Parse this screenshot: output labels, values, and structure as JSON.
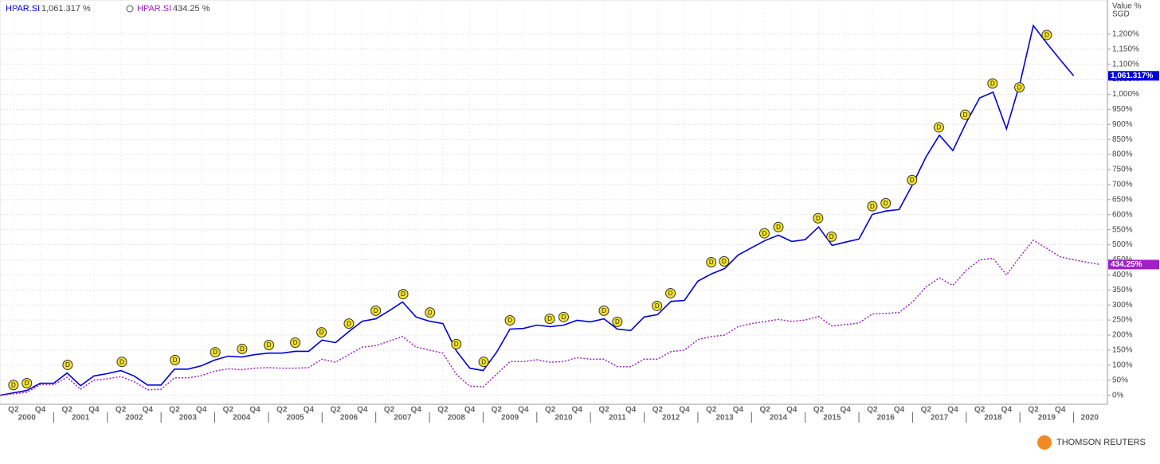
{
  "chart_data": {
    "type": "line",
    "ylabel": "Value %",
    "yunit": "SGD",
    "brand": "THOMSON REUTERS",
    "xlim": [
      2000,
      2020.6
    ],
    "ylim": [
      -30,
      1300
    ],
    "grid": true,
    "x": [
      2000,
      2000.25,
      2000.5,
      2000.75,
      2001,
      2001.25,
      2001.5,
      2001.75,
      2002,
      2002.25,
      2002.5,
      2002.75,
      2003,
      2003.25,
      2003.5,
      2003.75,
      2004,
      2004.25,
      2004.5,
      2004.75,
      2005,
      2005.25,
      2005.5,
      2005.75,
      2006,
      2006.25,
      2006.5,
      2006.75,
      2007,
      2007.25,
      2007.5,
      2007.75,
      2008,
      2008.25,
      2008.5,
      2008.75,
      2009,
      2009.25,
      2009.5,
      2009.75,
      2010,
      2010.25,
      2010.5,
      2010.75,
      2011,
      2011.25,
      2011.5,
      2011.75,
      2012,
      2012.25,
      2012.5,
      2012.75,
      2013,
      2013.25,
      2013.5,
      2013.75,
      2014,
      2014.25,
      2014.5,
      2014.75,
      2015,
      2015.25,
      2015.5,
      2015.75,
      2016,
      2016.25,
      2016.5,
      2016.75,
      2017,
      2017.25,
      2017.5,
      2017.75,
      2018,
      2018.25,
      2018.5,
      2018.75,
      2019,
      2019.25,
      2019.5,
      2019.75,
      2020,
      2020.25,
      2020.5
    ],
    "series": [
      {
        "name": "HPAR.SI",
        "color": "#0000dd",
        "style": "solid",
        "legend_value": "1,061.317 %",
        "last_label": "1,061.317%",
        "values": [
          0,
          8,
          16,
          40,
          40,
          74,
          32,
          64,
          72,
          82,
          64,
          34,
          34,
          87,
          87,
          98,
          117,
          130,
          127,
          135,
          140,
          140,
          146,
          146,
          183,
          175,
          212,
          246,
          254,
          281,
          310,
          260,
          246,
          238,
          148,
          90,
          82,
          143,
          220,
          222,
          233,
          228,
          233,
          249,
          244,
          254,
          220,
          215,
          260,
          268,
          312,
          315,
          379,
          403,
          421,
          466,
          490,
          514,
          532,
          511,
          517,
          559,
          498,
          509,
          519,
          601,
          612,
          617,
          700,
          792,
          864,
          813,
          906,
          988,
          1007,
          885,
          1036,
          1228,
          1170,
          1115,
          1061.317,
          null,
          null
        ]
      },
      {
        "name": "HPAR.SI",
        "color": "#a020c8",
        "style": "dotted",
        "legend_value": "434.25 %",
        "last_label": "434.25%",
        "values": [
          0,
          5,
          10,
          35,
          35,
          60,
          20,
          50,
          55,
          62,
          45,
          18,
          20,
          58,
          58,
          65,
          80,
          88,
          85,
          90,
          92,
          90,
          90,
          92,
          120,
          110,
          135,
          160,
          165,
          180,
          195,
          160,
          150,
          140,
          70,
          30,
          28,
          70,
          112,
          112,
          118,
          110,
          112,
          125,
          120,
          120,
          95,
          95,
          120,
          120,
          145,
          150,
          185,
          195,
          200,
          228,
          238,
          245,
          252,
          245,
          250,
          262,
          230,
          235,
          240,
          270,
          272,
          275,
          310,
          360,
          390,
          365,
          415,
          450,
          455,
          400,
          460,
          515,
          488,
          460,
          450,
          442,
          434.25
        ]
      }
    ],
    "dividends": {
      "label": "D",
      "x": [
        2000.25,
        2000.5,
        2001.26,
        2002.27,
        2003.26,
        2004.01,
        2004.51,
        2005.01,
        2005.5,
        2005.99,
        2006.5,
        2007,
        2007.51,
        2008.01,
        2008.5,
        2009.01,
        2009.5,
        2010.24,
        2010.5,
        2011.25,
        2011.5,
        2012.24,
        2012.49,
        2013.25,
        2013.49,
        2014.24,
        2014.5,
        2015.24,
        2015.49,
        2016.25,
        2016.5,
        2016.99,
        2017.49,
        2017.98,
        2018.49,
        2018.99,
        2019.5
      ],
      "y": [
        34,
        40,
        101,
        111,
        117,
        143,
        154,
        167,
        175,
        209,
        238,
        281,
        336,
        275,
        170,
        111,
        249,
        254,
        260,
        281,
        244,
        297,
        339,
        442,
        445,
        538,
        559,
        588,
        527,
        628,
        638,
        715,
        890,
        932,
        1036,
        1023,
        1197
      ]
    },
    "yticks": [
      {
        "value": 0,
        "label": "0%"
      },
      {
        "value": 50,
        "label": "50%"
      },
      {
        "value": 100,
        "label": "100%"
      },
      {
        "value": 150,
        "label": "150%"
      },
      {
        "value": 200,
        "label": "200%"
      },
      {
        "value": 250,
        "label": "250%"
      },
      {
        "value": 300,
        "label": "300%"
      },
      {
        "value": 350,
        "label": "350%"
      },
      {
        "value": 400,
        "label": "400%"
      },
      {
        "value": 450,
        "label": "450%"
      },
      {
        "value": 500,
        "label": "500%"
      },
      {
        "value": 550,
        "label": "550%"
      },
      {
        "value": 600,
        "label": "600%"
      },
      {
        "value": 650,
        "label": "650%"
      },
      {
        "value": 700,
        "label": "700%"
      },
      {
        "value": 750,
        "label": "750%"
      },
      {
        "value": 800,
        "label": "800%"
      },
      {
        "value": 850,
        "label": "850%"
      },
      {
        "value": 900,
        "label": "900%"
      },
      {
        "value": 950,
        "label": "950%"
      },
      {
        "value": 1000,
        "label": "1,000%"
      },
      {
        "value": 1050,
        "label": "1,050%"
      },
      {
        "value": 1100,
        "label": "1,100%"
      },
      {
        "value": 1150,
        "label": "1,150%"
      },
      {
        "value": 1200,
        "label": "1,200%"
      }
    ],
    "xticks": [
      {
        "value": 2000.25,
        "label": "Q2"
      },
      {
        "value": 2000.75,
        "label": "Q4"
      },
      {
        "value": 2001.25,
        "label": "Q2"
      },
      {
        "value": 2001.75,
        "label": "Q4"
      },
      {
        "value": 2002.25,
        "label": "Q2"
      },
      {
        "value": 2002.75,
        "label": "Q4"
      },
      {
        "value": 2003.25,
        "label": "Q2"
      },
      {
        "value": 2003.75,
        "label": "Q4"
      },
      {
        "value": 2004.25,
        "label": "Q2"
      },
      {
        "value": 2004.75,
        "label": "Q4"
      },
      {
        "value": 2005.25,
        "label": "Q2"
      },
      {
        "value": 2005.75,
        "label": "Q4"
      },
      {
        "value": 2006.25,
        "label": "Q2"
      },
      {
        "value": 2006.75,
        "label": "Q4"
      },
      {
        "value": 2007.25,
        "label": "Q2"
      },
      {
        "value": 2007.75,
        "label": "Q4"
      },
      {
        "value": 2008.25,
        "label": "Q2"
      },
      {
        "value": 2008.75,
        "label": "Q4"
      },
      {
        "value": 2009.25,
        "label": "Q2"
      },
      {
        "value": 2009.75,
        "label": "Q4"
      },
      {
        "value": 2010.25,
        "label": "Q2"
      },
      {
        "value": 2010.75,
        "label": "Q4"
      },
      {
        "value": 2011.25,
        "label": "Q2"
      },
      {
        "value": 2011.75,
        "label": "Q4"
      },
      {
        "value": 2012.25,
        "label": "Q2"
      },
      {
        "value": 2012.75,
        "label": "Q4"
      },
      {
        "value": 2013.25,
        "label": "Q2"
      },
      {
        "value": 2013.75,
        "label": "Q4"
      },
      {
        "value": 2014.25,
        "label": "Q2"
      },
      {
        "value": 2014.75,
        "label": "Q4"
      },
      {
        "value": 2015.25,
        "label": "Q2"
      },
      {
        "value": 2015.75,
        "label": "Q4"
      },
      {
        "value": 2016.25,
        "label": "Q2"
      },
      {
        "value": 2016.75,
        "label": "Q4"
      },
      {
        "value": 2017.25,
        "label": "Q2"
      },
      {
        "value": 2017.75,
        "label": "Q4"
      },
      {
        "value": 2018.25,
        "label": "Q2"
      },
      {
        "value": 2018.75,
        "label": "Q4"
      },
      {
        "value": 2019.25,
        "label": "Q2"
      },
      {
        "value": 2019.75,
        "label": "Q4"
      }
    ],
    "year_labels": [
      {
        "value": 2000.5,
        "label": "2000"
      },
      {
        "value": 2001.5,
        "label": "2001"
      },
      {
        "value": 2002.5,
        "label": "2002"
      },
      {
        "value": 2003.5,
        "label": "2003"
      },
      {
        "value": 2004.5,
        "label": "2004"
      },
      {
        "value": 2005.5,
        "label": "2005"
      },
      {
        "value": 2006.5,
        "label": "2006"
      },
      {
        "value": 2007.5,
        "label": "2007"
      },
      {
        "value": 2008.5,
        "label": "2008"
      },
      {
        "value": 2009.5,
        "label": "2009"
      },
      {
        "value": 2010.5,
        "label": "2010"
      },
      {
        "value": 2011.5,
        "label": "2011"
      },
      {
        "value": 2012.5,
        "label": "2012"
      },
      {
        "value": 2013.5,
        "label": "2013"
      },
      {
        "value": 2014.5,
        "label": "2014"
      },
      {
        "value": 2015.5,
        "label": "2015"
      },
      {
        "value": 2016.5,
        "label": "2016"
      },
      {
        "value": 2017.5,
        "label": "2017"
      },
      {
        "value": 2018.5,
        "label": "2018"
      },
      {
        "value": 2019.5,
        "label": "2019"
      },
      {
        "value": 2020.3,
        "label": "2020"
      }
    ]
  }
}
